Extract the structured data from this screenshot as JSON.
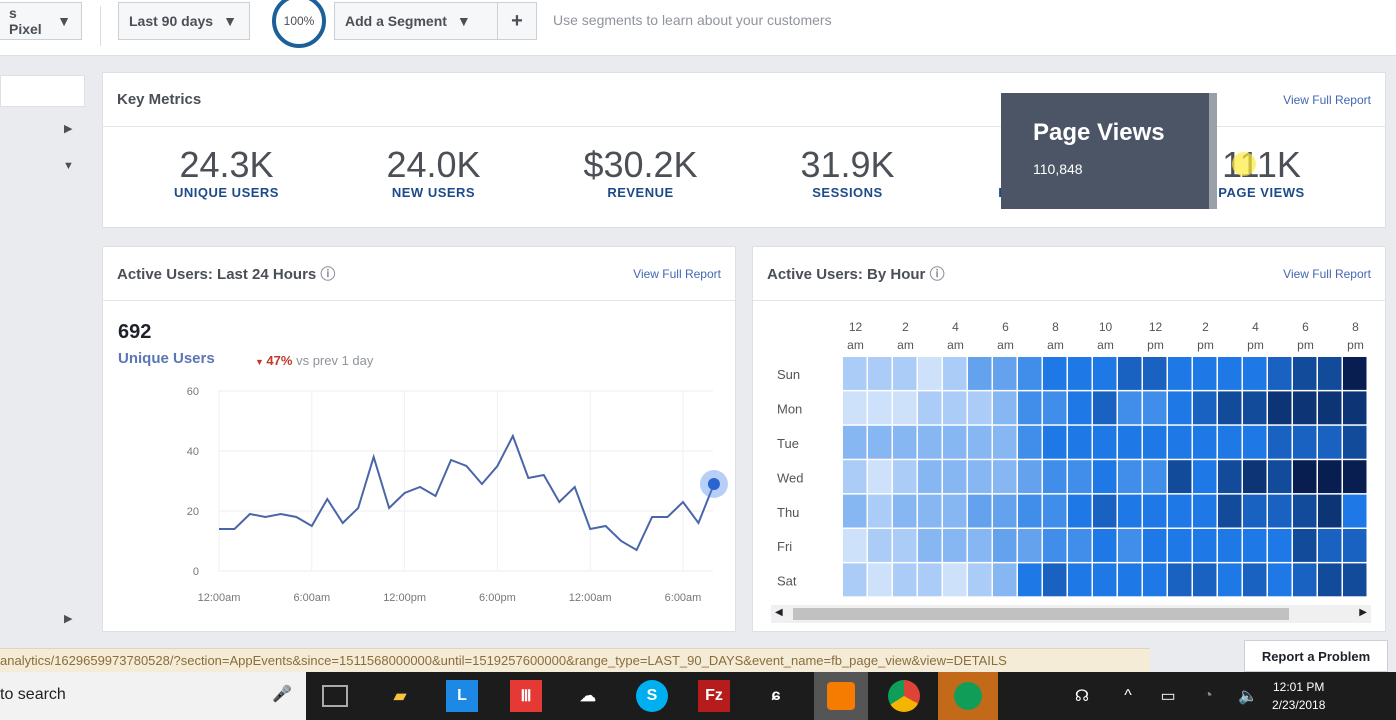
{
  "topbar": {
    "source": "s Pixel",
    "date_range": "Last 90 days",
    "zoom": "100%",
    "segment": "Add a Segment",
    "plus": "+",
    "hint": "Use segments to learn about your customers"
  },
  "key_metrics": {
    "title": "Key Metrics",
    "link": "View Full Report",
    "items": [
      {
        "value": "24.3K",
        "label": "UNIQUE USERS"
      },
      {
        "value": "24.0K",
        "label": "NEW USERS"
      },
      {
        "value": "$30.2K",
        "label": "REVENUE"
      },
      {
        "value": "31.9K",
        "label": "SESSIONS"
      },
      {
        "value": "",
        "label": "REGISTRATIONS"
      },
      {
        "value": "111K",
        "label": "PAGE VIEWS"
      }
    ],
    "tooltip": {
      "title": "Page Views",
      "value": "110,848"
    }
  },
  "active24": {
    "title": "Active Users: Last 24 Hours",
    "link": "View Full Report",
    "count": "692",
    "metric": "Unique Users",
    "change": "47%",
    "change_suffix": "vs prev 1 day"
  },
  "byhour": {
    "title": "Active Users: By Hour",
    "link": "View Full Report"
  },
  "chart_data": [
    {
      "type": "line",
      "xlabel": "",
      "ylabel": "",
      "ylim": [
        0,
        60
      ],
      "yticks": [
        "0",
        "20",
        "40",
        "60"
      ],
      "xticks": [
        "12:00am",
        "6:00am",
        "12:00pm",
        "6:00pm",
        "12:00am",
        "6:00am"
      ],
      "x_hours": [
        0,
        1,
        2,
        3,
        4,
        5,
        6,
        7,
        8,
        9,
        10,
        11,
        12,
        13,
        14,
        15,
        16,
        17,
        18,
        19,
        20,
        21,
        22,
        23,
        24,
        25,
        26,
        27,
        28,
        29,
        30,
        31,
        32
      ],
      "values": [
        14,
        14,
        19,
        18,
        19,
        18,
        15,
        24,
        16,
        21,
        38,
        21,
        26,
        28,
        25,
        37,
        35,
        29,
        35,
        45,
        31,
        32,
        23,
        28,
        14,
        15,
        10,
        7,
        18,
        18,
        23,
        16,
        29
      ],
      "color": "#4a66a8",
      "highlight_last": true
    },
    {
      "type": "heatmap",
      "rows": [
        "Sun",
        "Mon",
        "Tue",
        "Wed",
        "Thu",
        "Fri",
        "Sat"
      ],
      "col_labels": [
        [
          "12",
          "am"
        ],
        [
          "2",
          "am"
        ],
        [
          "4",
          "am"
        ],
        [
          "6",
          "am"
        ],
        [
          "8",
          "am"
        ],
        [
          "10",
          "am"
        ],
        [
          "12",
          "pm"
        ],
        [
          "2",
          "pm"
        ],
        [
          "4",
          "pm"
        ],
        [
          "6",
          "pm"
        ],
        [
          "8",
          "pm"
        ]
      ],
      "scale": [
        0,
        10
      ],
      "values": [
        [
          2,
          2,
          2,
          1,
          2,
          4,
          4,
          5,
          6,
          6,
          6,
          7,
          7,
          6,
          6,
          6,
          6,
          7,
          8,
          8,
          10
        ],
        [
          1,
          1,
          1,
          2,
          2,
          2,
          3,
          5,
          5,
          6,
          7,
          5,
          5,
          6,
          7,
          8,
          8,
          9,
          9,
          9,
          9
        ],
        [
          3,
          3,
          3,
          3,
          3,
          3,
          3,
          5,
          6,
          6,
          6,
          6,
          6,
          6,
          6,
          6,
          6,
          7,
          7,
          7,
          8
        ],
        [
          2,
          1,
          2,
          3,
          3,
          3,
          3,
          4,
          5,
          5,
          6,
          5,
          5,
          8,
          6,
          8,
          9,
          8,
          10,
          10,
          10
        ],
        [
          3,
          2,
          3,
          3,
          3,
          4,
          4,
          5,
          5,
          6,
          7,
          6,
          6,
          6,
          6,
          8,
          7,
          7,
          8,
          9,
          6
        ],
        [
          1,
          2,
          2,
          3,
          3,
          3,
          4,
          4,
          5,
          5,
          6,
          5,
          6,
          6,
          6,
          6,
          6,
          6,
          8,
          7,
          7
        ],
        [
          2,
          1,
          2,
          2,
          1,
          2,
          3,
          6,
          7,
          6,
          6,
          6,
          6,
          7,
          7,
          6,
          7,
          6,
          7,
          8,
          8
        ]
      ]
    }
  ],
  "status_url": "analytics/1629659973780528/?section=AppEvents&since=1511568000000&until=1519257600000&range_type=LAST_90_DAYS&event_name=fb_page_view&view=DETAILS",
  "report_problem": "Report a Problem",
  "taskbar": {
    "search": "to search",
    "apps": [
      "task-view",
      "file-explorer",
      "L",
      "red-app",
      "cloud-app",
      "skype",
      "filezilla",
      "dragon",
      "orange-app",
      "chrome",
      "hangouts"
    ],
    "time": "12:01 PM",
    "date": "2/23/2018"
  }
}
